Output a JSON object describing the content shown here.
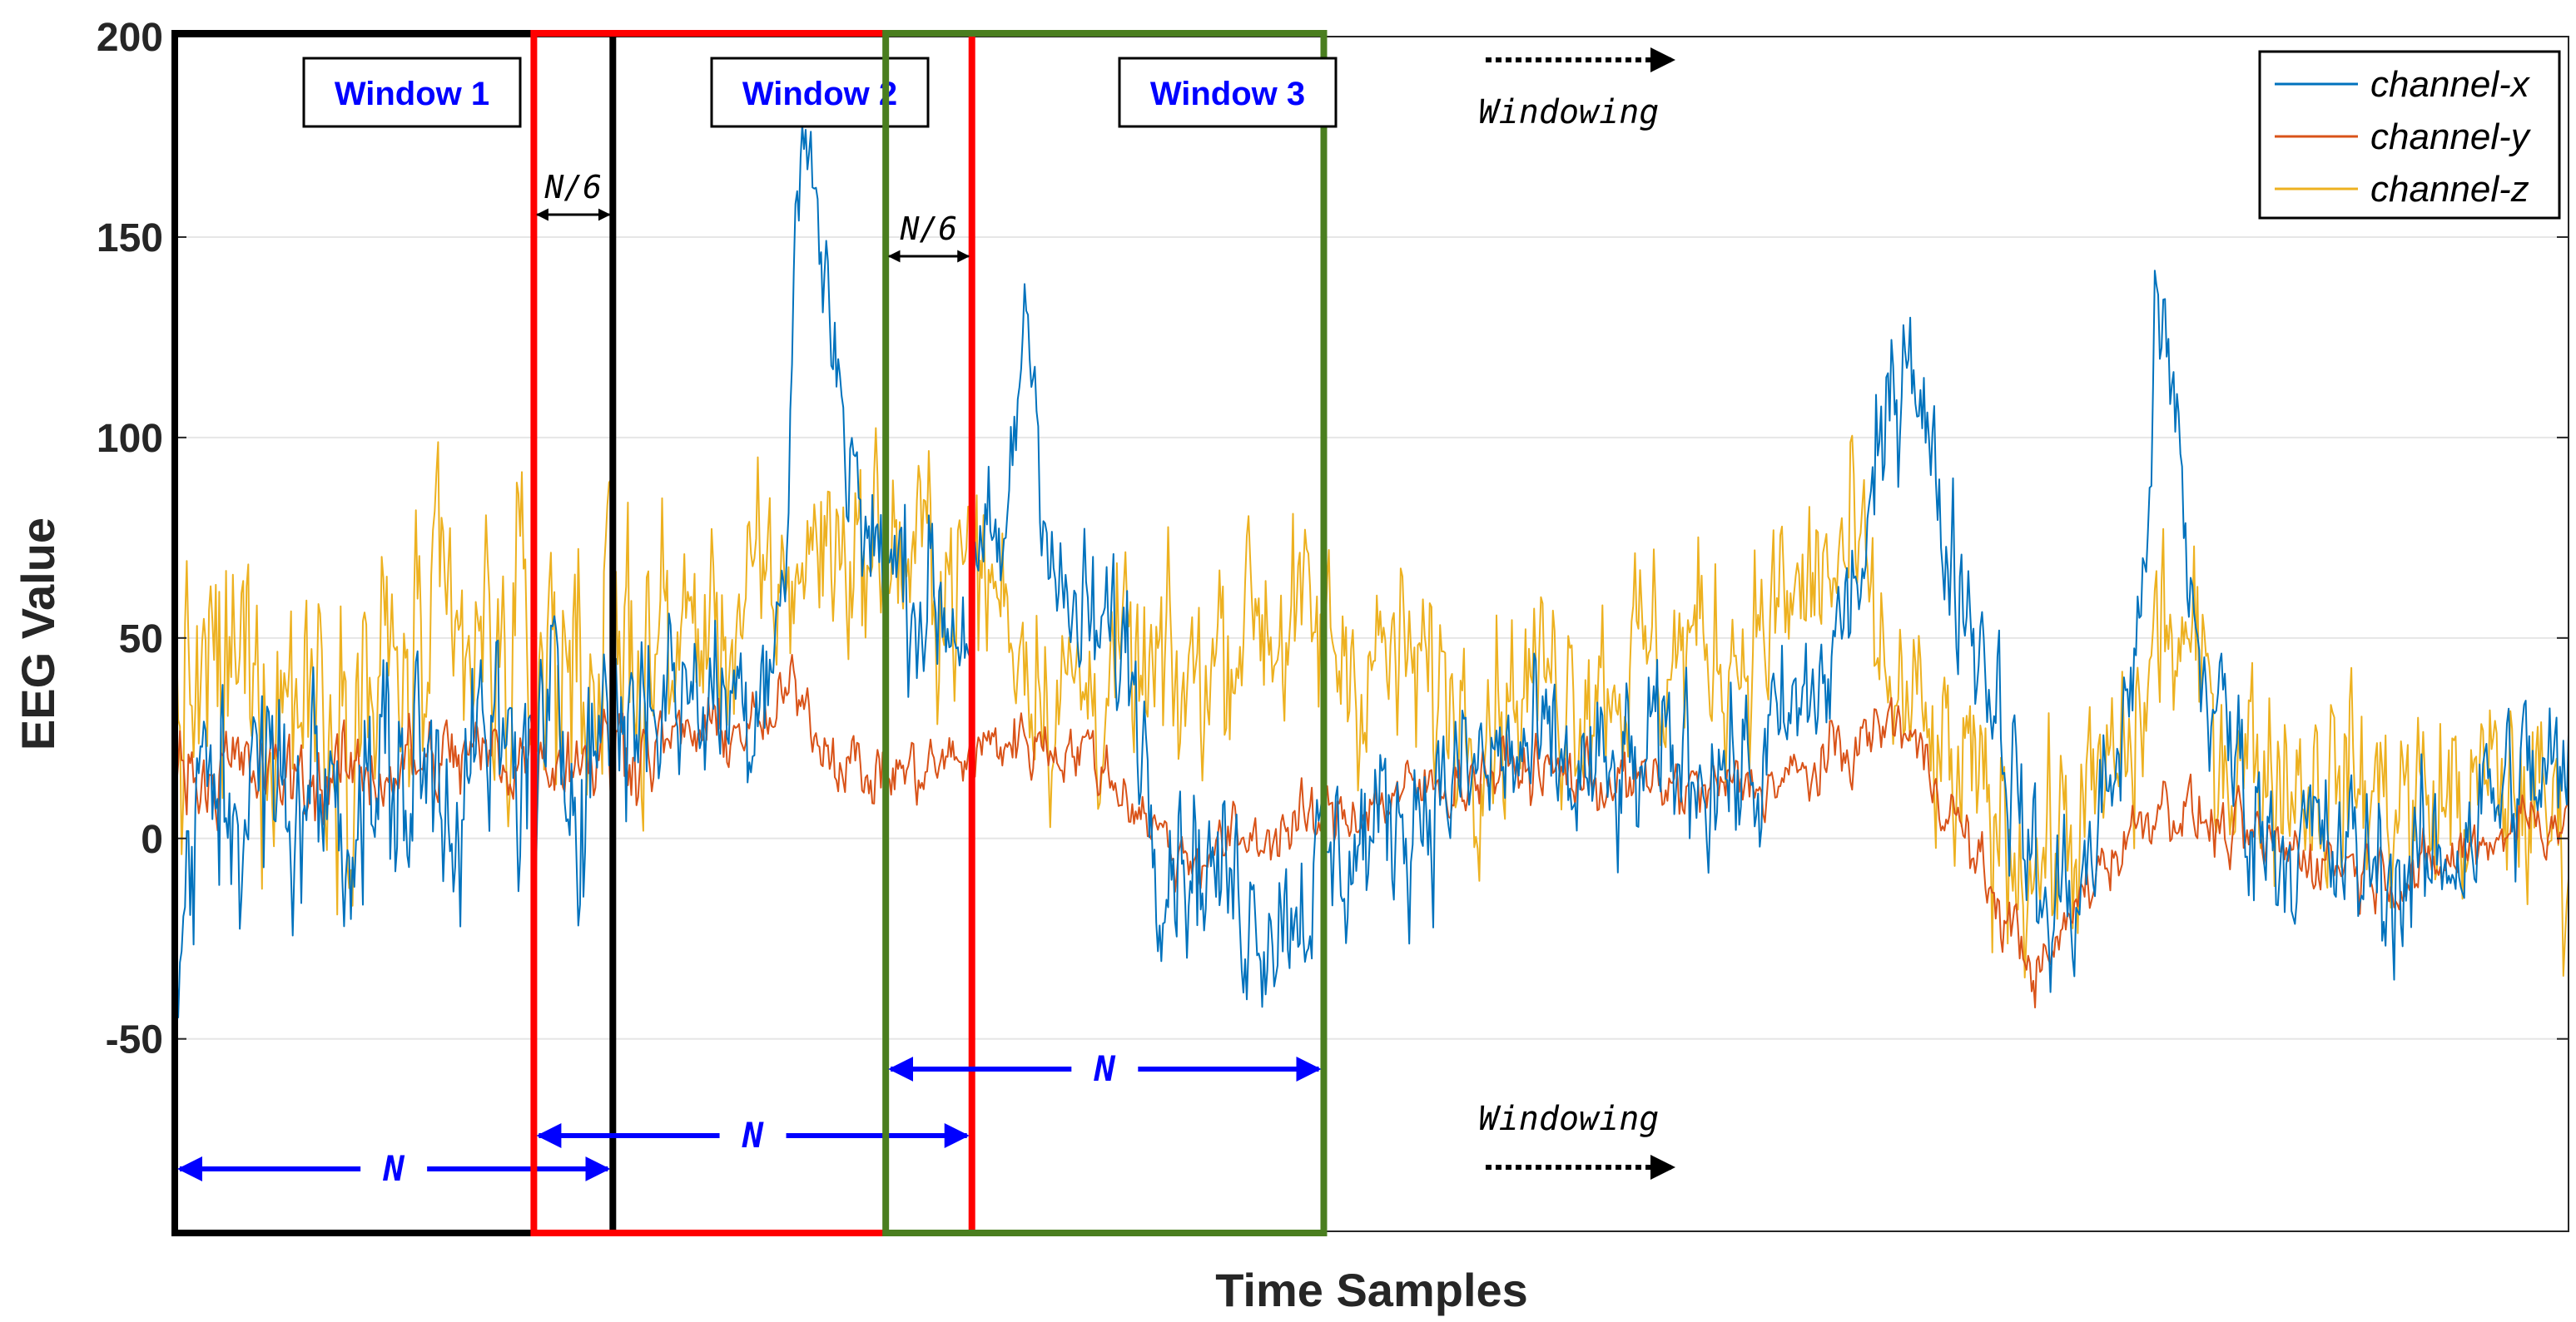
{
  "chart_data": {
    "type": "line",
    "title": "",
    "xlabel": "Time Samples",
    "ylabel": "EEG Value",
    "ylim": [
      -98,
      200
    ],
    "xlim": [
      0,
      1000
    ],
    "yticks": [
      200,
      150,
      100,
      50,
      0,
      -50
    ],
    "ytick_labels": [
      "200",
      "150",
      "100",
      "50",
      "0",
      "-50"
    ],
    "grid": true,
    "legend_position": "top-right",
    "series": [
      {
        "name": "channel-x",
        "color": "#0072BD",
        "noise": 22,
        "keypoints": [
          [
            0,
            -25
          ],
          [
            15,
            12
          ],
          [
            60,
            10
          ],
          [
            120,
            18
          ],
          [
            160,
            20
          ],
          [
            200,
            38
          ],
          [
            240,
            35
          ],
          [
            255,
            65
          ],
          [
            262,
            185
          ],
          [
            270,
            145
          ],
          [
            290,
            70
          ],
          [
            330,
            55
          ],
          [
            345,
            70
          ],
          [
            350,
            85
          ],
          [
            355,
            140
          ],
          [
            360,
            110
          ],
          [
            370,
            55
          ],
          [
            400,
            45
          ],
          [
            410,
            5
          ],
          [
            440,
            -12
          ],
          [
            460,
            -18
          ],
          [
            480,
            -8
          ],
          [
            520,
            10
          ],
          [
            560,
            20
          ],
          [
            600,
            12
          ],
          [
            630,
            22
          ],
          [
            660,
            15
          ],
          [
            690,
            40
          ],
          [
            710,
            80
          ],
          [
            725,
            135
          ],
          [
            735,
            85
          ],
          [
            760,
            40
          ],
          [
            780,
            -20
          ],
          [
            800,
            -8
          ],
          [
            820,
            45
          ],
          [
            828,
            130
          ],
          [
            836,
            100
          ],
          [
            845,
            45
          ],
          [
            870,
            5
          ],
          [
            900,
            -5
          ],
          [
            940,
            -10
          ],
          [
            960,
            5
          ],
          [
            980,
            15
          ],
          [
            1000,
            12
          ]
        ]
      },
      {
        "name": "channel-y",
        "color": "#D95319",
        "noise": 8,
        "keypoints": [
          [
            0,
            18
          ],
          [
            60,
            15
          ],
          [
            120,
            20
          ],
          [
            180,
            22
          ],
          [
            230,
            27
          ],
          [
            250,
            28
          ],
          [
            260,
            40
          ],
          [
            270,
            25
          ],
          [
            290,
            15
          ],
          [
            320,
            18
          ],
          [
            350,
            25
          ],
          [
            380,
            22
          ],
          [
            400,
            10
          ],
          [
            420,
            -5
          ],
          [
            450,
            0
          ],
          [
            480,
            5
          ],
          [
            520,
            12
          ],
          [
            560,
            18
          ],
          [
            600,
            14
          ],
          [
            640,
            12
          ],
          [
            680,
            15
          ],
          [
            720,
            30
          ],
          [
            740,
            10
          ],
          [
            760,
            -15
          ],
          [
            780,
            -35
          ],
          [
            800,
            -10
          ],
          [
            830,
            10
          ],
          [
            860,
            0
          ],
          [
            900,
            -5
          ],
          [
            940,
            -10
          ],
          [
            960,
            -2
          ],
          [
            980,
            5
          ],
          [
            1000,
            5
          ]
        ]
      },
      {
        "name": "channel-z",
        "color": "#EDB120",
        "noise": 26,
        "keypoints": [
          [
            0,
            30
          ],
          [
            30,
            40
          ],
          [
            90,
            38
          ],
          [
            150,
            45
          ],
          [
            200,
            48
          ],
          [
            240,
            55
          ],
          [
            270,
            75
          ],
          [
            300,
            70
          ],
          [
            340,
            65
          ],
          [
            370,
            35
          ],
          [
            395,
            40
          ],
          [
            420,
            35
          ],
          [
            450,
            60
          ],
          [
            470,
            50
          ],
          [
            500,
            45
          ],
          [
            540,
            35
          ],
          [
            570,
            40
          ],
          [
            620,
            45
          ],
          [
            660,
            50
          ],
          [
            680,
            60
          ],
          [
            700,
            70
          ],
          [
            715,
            40
          ],
          [
            740,
            15
          ],
          [
            760,
            5
          ],
          [
            780,
            -5
          ],
          [
            800,
            5
          ],
          [
            820,
            25
          ],
          [
            830,
            55
          ],
          [
            840,
            45
          ],
          [
            860,
            22
          ],
          [
            900,
            15
          ],
          [
            940,
            8
          ],
          [
            960,
            10
          ],
          [
            980,
            12
          ],
          [
            1000,
            0
          ]
        ]
      }
    ]
  },
  "annotations": {
    "windows": [
      {
        "label": "Window 1",
        "color": "#000000",
        "start": 0,
        "end": 183
      },
      {
        "label": "Window 2",
        "color": "#FF0000",
        "start": 150,
        "end": 333
      },
      {
        "label": "Window 3",
        "color": "#4A7E1F",
        "start": 297,
        "end": 480
      }
    ],
    "overlap_label": "N/6",
    "span_label": "N",
    "direction_label": "Windowing"
  }
}
